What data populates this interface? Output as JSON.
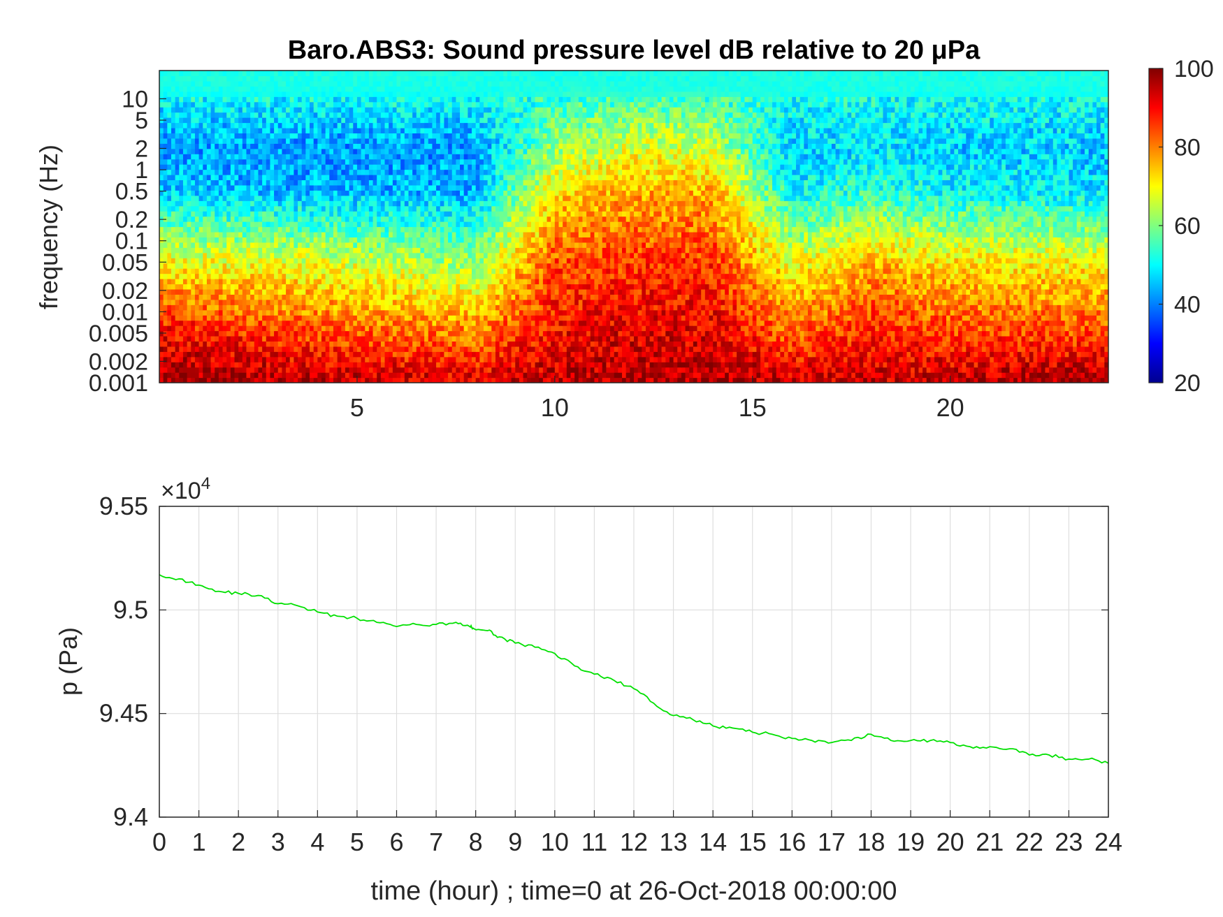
{
  "chart_data": [
    {
      "type": "heatmap",
      "title": "Baro.ABS3: Sound pressure level dB relative to 20 μPa",
      "ylabel": "frequency (Hz)",
      "xlabel": "",
      "xlim": [
        0,
        24
      ],
      "x_ticks": [
        5,
        10,
        15,
        20
      ],
      "y_scale": "log",
      "ylim": [
        0.001,
        25
      ],
      "y_ticks": [
        0.001,
        0.002,
        0.005,
        0.01,
        0.02,
        0.05,
        0.1,
        0.2,
        0.5,
        1,
        2,
        5,
        10
      ],
      "y_tick_labels": [
        "0.001",
        "0.002",
        "0.005",
        "0.01",
        "0.02",
        "0.05",
        "0.1",
        "0.2",
        "0.5",
        "1",
        "2",
        "5",
        "10"
      ],
      "colormap": "jet",
      "colorbar": {
        "range": [
          20,
          100
        ],
        "ticks": [
          20,
          40,
          60,
          80,
          100
        ]
      },
      "grid": false,
      "description_bands": [
        {
          "freq_hz": 0.001,
          "hours": [
            0,
            4,
            8,
            10,
            12,
            14,
            16,
            18,
            20,
            24
          ],
          "db": [
            99,
            95,
            93,
            95,
            96,
            97,
            94,
            94,
            95,
            98
          ]
        },
        {
          "freq_hz": 0.005,
          "hours": [
            0,
            4,
            8,
            10,
            12,
            14,
            16,
            18,
            20,
            24
          ],
          "db": [
            90,
            84,
            80,
            90,
            92,
            92,
            82,
            88,
            85,
            84
          ]
        },
        {
          "freq_hz": 0.05,
          "hours": [
            0,
            4,
            8,
            10,
            12,
            14,
            16,
            18,
            20,
            24
          ],
          "db": [
            70,
            68,
            62,
            84,
            86,
            86,
            68,
            76,
            72,
            70
          ]
        },
        {
          "freq_hz": 0.5,
          "hours": [
            0,
            4,
            8,
            10,
            12,
            14,
            16,
            18,
            20,
            24
          ],
          "db": [
            46,
            44,
            44,
            72,
            76,
            76,
            50,
            54,
            50,
            48
          ]
        },
        {
          "freq_hz": 2,
          "hours": [
            0,
            4,
            8,
            10,
            12,
            14,
            16,
            18,
            20,
            24
          ],
          "db": [
            42,
            42,
            42,
            62,
            68,
            66,
            46,
            48,
            46,
            46
          ]
        },
        {
          "freq_hz": 15,
          "hours": [
            0,
            24
          ],
          "db": [
            52,
            52
          ]
        }
      ]
    },
    {
      "type": "line",
      "title": "",
      "xlabel": "time (hour) ; time=0 at 26-Oct-2018 00:00:00",
      "ylabel": "p (Pa)",
      "y_exponent_label": "×10",
      "y_exponent_power": "4",
      "xlim": [
        0,
        24
      ],
      "ylim": [
        9.4,
        9.55
      ],
      "x_ticks": [
        0,
        1,
        2,
        3,
        4,
        5,
        6,
        7,
        8,
        9,
        10,
        11,
        12,
        13,
        14,
        15,
        16,
        17,
        18,
        19,
        20,
        21,
        22,
        23,
        24
      ],
      "y_ticks": [
        9.4,
        9.45,
        9.5,
        9.55
      ],
      "y_tick_labels": [
        "9.4",
        "9.45",
        "9.5",
        "9.55"
      ],
      "grid": true,
      "series": [
        {
          "color": "#00e000",
          "x": [
            0,
            0.5,
            1,
            1.5,
            2,
            2.5,
            3,
            3.5,
            4,
            4.5,
            5,
            5.5,
            6,
            6.5,
            7,
            7.5,
            7.85,
            7.95,
            8.3,
            8.6,
            9,
            9.5,
            10,
            10.5,
            11,
            11.5,
            12,
            12.5,
            13,
            13.5,
            14,
            14.5,
            15,
            15.5,
            16,
            16.5,
            17,
            17.5,
            18,
            18.5,
            19,
            19.5,
            20,
            20.5,
            21,
            21.5,
            22,
            22.5,
            23,
            23.5,
            24
          ],
          "y": [
            9.517,
            9.515,
            9.512,
            9.509,
            9.508,
            9.507,
            9.503,
            9.502,
            9.499,
            9.497,
            9.496,
            9.494,
            9.492,
            9.493,
            9.493,
            9.494,
            9.492,
            9.491,
            9.49,
            9.487,
            9.484,
            9.482,
            9.479,
            9.473,
            9.469,
            9.466,
            9.462,
            9.455,
            9.449,
            9.447,
            9.444,
            9.443,
            9.441,
            9.44,
            9.438,
            9.437,
            9.436,
            9.437,
            9.44,
            9.437,
            9.437,
            9.437,
            9.436,
            9.434,
            9.434,
            9.433,
            9.43,
            9.43,
            9.428,
            9.428,
            9.426
          ]
        }
      ]
    }
  ]
}
